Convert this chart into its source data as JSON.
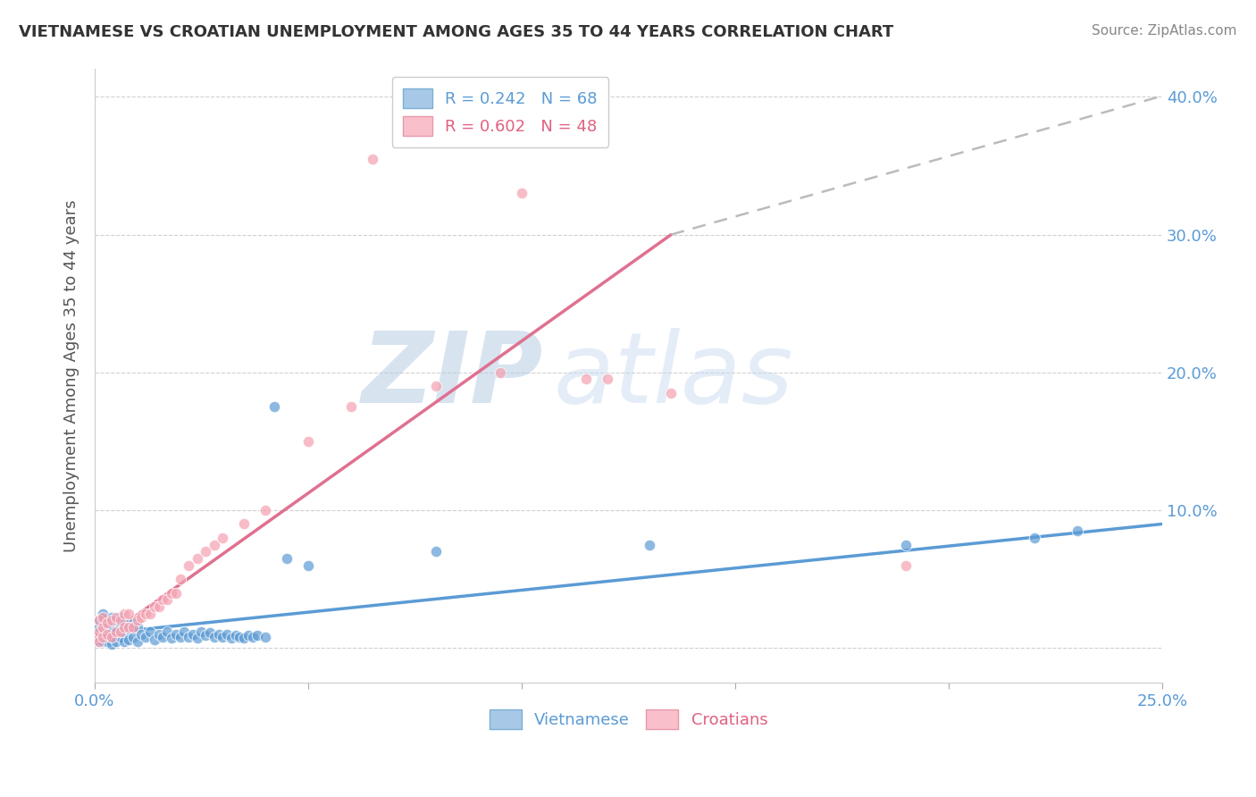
{
  "title": "VIETNAMESE VS CROATIAN UNEMPLOYMENT AMONG AGES 35 TO 44 YEARS CORRELATION CHART",
  "source": "Source: ZipAtlas.com",
  "ylabel": "Unemployment Among Ages 35 to 44 years",
  "xlim": [
    0.0,
    0.25
  ],
  "ylim": [
    -0.025,
    0.42
  ],
  "xticks": [
    0.0,
    0.05,
    0.1,
    0.15,
    0.2,
    0.25
  ],
  "yticks": [
    0.0,
    0.1,
    0.2,
    0.3,
    0.4
  ],
  "ytick_labels": [
    "",
    "10.0%",
    "20.0%",
    "30.0%",
    "40.0%"
  ],
  "xtick_labels": [
    "0.0%",
    "",
    "",
    "",
    "",
    "25.0%"
  ],
  "title_color": "#333333",
  "axis_color": "#5b9bd5",
  "watermark_line1": "ZIP",
  "watermark_line2": "atlas",
  "legend_r1": "R = 0.242",
  "legend_n1": "N = 68",
  "legend_r2": "R = 0.602",
  "legend_n2": "N = 48",
  "blue_color": "#5b9bd5",
  "pink_color": "#f4a0b0",
  "dot_alpha": 0.7,
  "dot_size": 80,
  "vietnamese_x": [
    0.0,
    0.001,
    0.001,
    0.001,
    0.001,
    0.002,
    0.002,
    0.002,
    0.002,
    0.003,
    0.003,
    0.003,
    0.004,
    0.004,
    0.004,
    0.004,
    0.005,
    0.005,
    0.005,
    0.006,
    0.006,
    0.006,
    0.007,
    0.007,
    0.007,
    0.008,
    0.008,
    0.009,
    0.009,
    0.01,
    0.01,
    0.011,
    0.012,
    0.013,
    0.014,
    0.015,
    0.016,
    0.017,
    0.018,
    0.019,
    0.02,
    0.021,
    0.022,
    0.023,
    0.024,
    0.025,
    0.026,
    0.027,
    0.028,
    0.029,
    0.03,
    0.031,
    0.032,
    0.033,
    0.034,
    0.035,
    0.036,
    0.037,
    0.038,
    0.04,
    0.042,
    0.045,
    0.05,
    0.08,
    0.13,
    0.19,
    0.22,
    0.23
  ],
  "vietnamese_y": [
    0.01,
    0.005,
    0.015,
    0.008,
    0.02,
    0.005,
    0.01,
    0.02,
    0.025,
    0.005,
    0.012,
    0.018,
    0.003,
    0.008,
    0.015,
    0.022,
    0.005,
    0.012,
    0.02,
    0.008,
    0.015,
    0.022,
    0.005,
    0.012,
    0.018,
    0.006,
    0.014,
    0.008,
    0.018,
    0.005,
    0.015,
    0.01,
    0.008,
    0.012,
    0.006,
    0.01,
    0.008,
    0.012,
    0.007,
    0.01,
    0.008,
    0.012,
    0.008,
    0.01,
    0.007,
    0.012,
    0.009,
    0.011,
    0.008,
    0.01,
    0.008,
    0.01,
    0.007,
    0.009,
    0.008,
    0.007,
    0.009,
    0.008,
    0.009,
    0.008,
    0.175,
    0.065,
    0.06,
    0.07,
    0.075,
    0.075,
    0.08,
    0.085
  ],
  "croatian_x": [
    0.0,
    0.001,
    0.001,
    0.001,
    0.002,
    0.002,
    0.002,
    0.003,
    0.003,
    0.004,
    0.004,
    0.005,
    0.005,
    0.006,
    0.006,
    0.007,
    0.007,
    0.008,
    0.008,
    0.009,
    0.01,
    0.011,
    0.012,
    0.013,
    0.014,
    0.015,
    0.016,
    0.017,
    0.018,
    0.019,
    0.02,
    0.022,
    0.024,
    0.026,
    0.028,
    0.03,
    0.035,
    0.04,
    0.05,
    0.06,
    0.065,
    0.08,
    0.095,
    0.1,
    0.115,
    0.12,
    0.135,
    0.19
  ],
  "croatian_y": [
    0.008,
    0.005,
    0.012,
    0.02,
    0.008,
    0.015,
    0.022,
    0.01,
    0.018,
    0.008,
    0.02,
    0.012,
    0.022,
    0.012,
    0.02,
    0.015,
    0.025,
    0.015,
    0.025,
    0.015,
    0.02,
    0.022,
    0.025,
    0.025,
    0.03,
    0.03,
    0.035,
    0.035,
    0.04,
    0.04,
    0.05,
    0.06,
    0.065,
    0.07,
    0.075,
    0.08,
    0.09,
    0.1,
    0.15,
    0.175,
    0.355,
    0.19,
    0.2,
    0.33,
    0.195,
    0.195,
    0.185,
    0.06
  ],
  "blue_trend_x": [
    0.0,
    0.25
  ],
  "blue_trend_y": [
    0.01,
    0.09
  ],
  "pink_trend_x": [
    0.0,
    0.135
  ],
  "pink_trend_y": [
    0.002,
    0.3
  ],
  "dash_trend_x": [
    0.135,
    0.255
  ],
  "dash_trend_y": [
    0.3,
    0.405
  ],
  "background_color": "#ffffff",
  "grid_color": "#d0d0d0",
  "watermark_color": "#c5d8ee"
}
